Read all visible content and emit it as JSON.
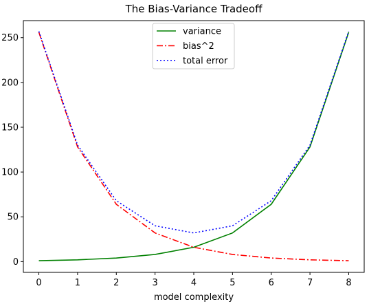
{
  "chart_data": {
    "type": "line",
    "title": "The Bias-Variance Tradeoff",
    "xlabel": "model complexity",
    "ylabel": "",
    "x": [
      0,
      1,
      2,
      3,
      4,
      5,
      6,
      7,
      8
    ],
    "xlim": [
      -0.4,
      8.4
    ],
    "ylim": [
      -12,
      269
    ],
    "xticks": [
      0,
      1,
      2,
      3,
      4,
      5,
      6,
      7,
      8
    ],
    "yticks": [
      0,
      50,
      100,
      150,
      200,
      250
    ],
    "grid": false,
    "legend_position": "top-center",
    "series": [
      {
        "name": "variance",
        "values": [
          1,
          2,
          4,
          8,
          16,
          32,
          64,
          128,
          256
        ],
        "color": "#008000",
        "style": "solid"
      },
      {
        "name": "bias^2",
        "values": [
          256,
          128,
          64,
          32,
          16,
          8,
          4,
          2,
          1
        ],
        "color": "#ff0000",
        "style": "dashdot"
      },
      {
        "name": "total error",
        "values": [
          257,
          130,
          68,
          40,
          32,
          40,
          68,
          130,
          257
        ],
        "color": "#0000ff",
        "style": "dotted"
      }
    ]
  }
}
